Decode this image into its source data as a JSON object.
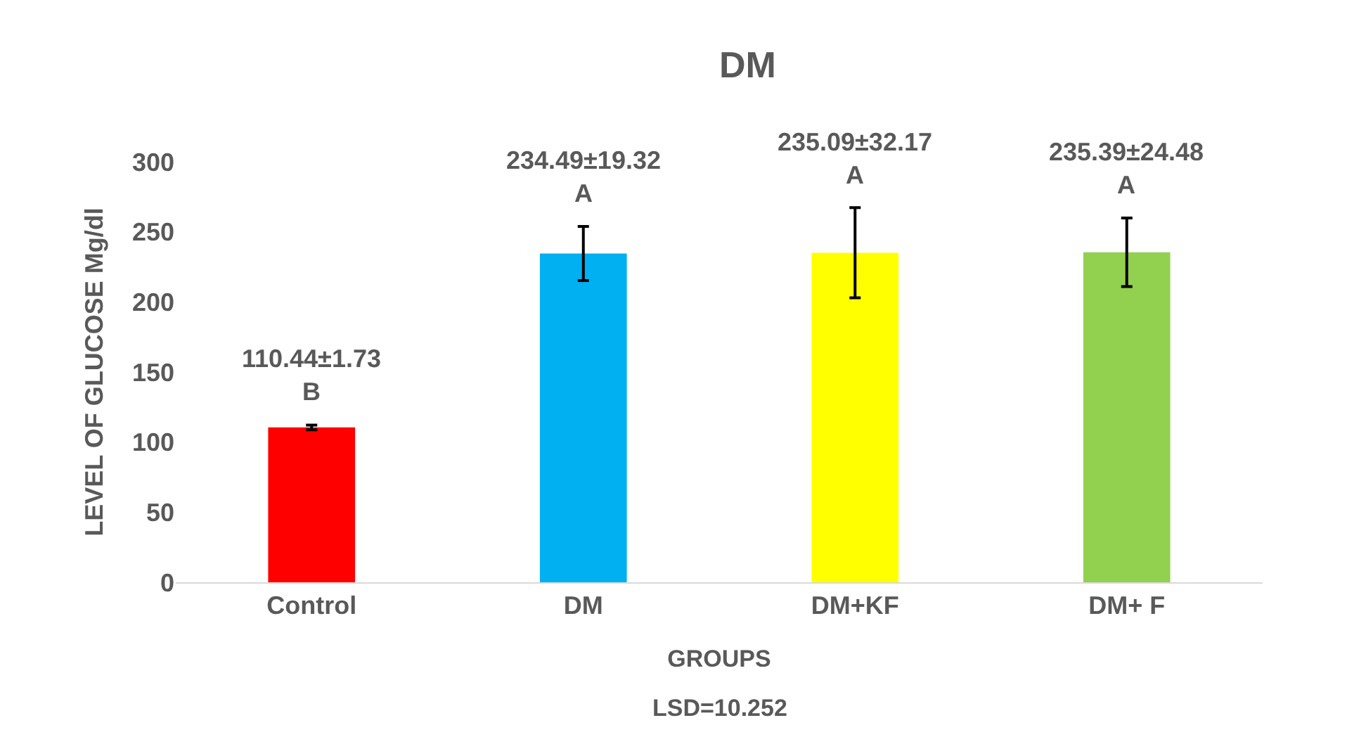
{
  "chart_data": {
    "type": "bar",
    "title": "DM",
    "xlabel": "GROUPS",
    "ylabel": "LEVEL OF GLUCOSE Mg/dl",
    "categories": [
      "Control",
      "DM",
      "DM+KF",
      "DM+ F"
    ],
    "values": [
      110.44,
      234.49,
      235.09,
      235.39
    ],
    "errors": [
      1.73,
      19.32,
      32.17,
      24.48
    ],
    "colors": [
      "#ff0000",
      "#00b0f0",
      "#ffff00",
      "#92d050"
    ],
    "value_labels": [
      "110.44±1.73\nB",
      "234.49±19.32\nA",
      "235.09±32.17\nA",
      "235.39±24.48\nA"
    ],
    "ylim": [
      0,
      300
    ],
    "yticks": [
      0,
      50,
      100,
      150,
      200,
      250,
      300
    ],
    "annotations": [
      "LSD=10.252"
    ]
  }
}
